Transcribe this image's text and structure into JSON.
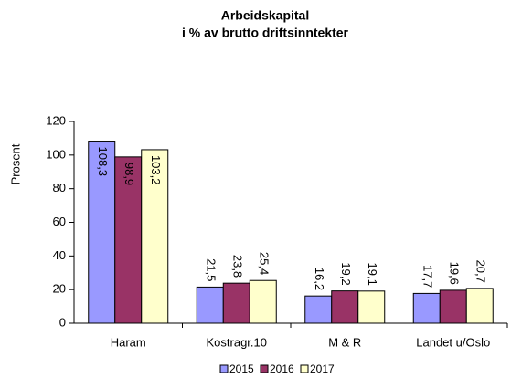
{
  "chart_data": {
    "type": "bar",
    "title": "Arbeidskapital",
    "subtitle": "i % av brutto driftsinntekter",
    "y_label": "Prosent",
    "categories": [
      "Haram",
      "Kostragr.10",
      "M & R",
      "Landet u/Oslo"
    ],
    "series": [
      {
        "name": "2015",
        "color": "#9999ff",
        "values": [
          108.3,
          21.5,
          16.2,
          17.7
        ],
        "value_labels": [
          "108,3",
          "21,5",
          "16,2",
          "17,7"
        ]
      },
      {
        "name": "2016",
        "color": "#993366",
        "values": [
          98.9,
          23.8,
          19.2,
          19.6
        ],
        "value_labels": [
          "98,9",
          "23,8",
          "19,2",
          "19,6"
        ]
      },
      {
        "name": "2017",
        "color": "#ffffcc",
        "values": [
          103.2,
          25.4,
          19.1,
          20.7
        ],
        "value_labels": [
          "103,2",
          "25,4",
          "19,1",
          "20,7"
        ]
      }
    ],
    "ylim": [
      0,
      120
    ],
    "yticks": [
      0,
      20,
      40,
      60,
      80,
      100,
      120
    ],
    "grid": false,
    "legend": "bottom"
  }
}
